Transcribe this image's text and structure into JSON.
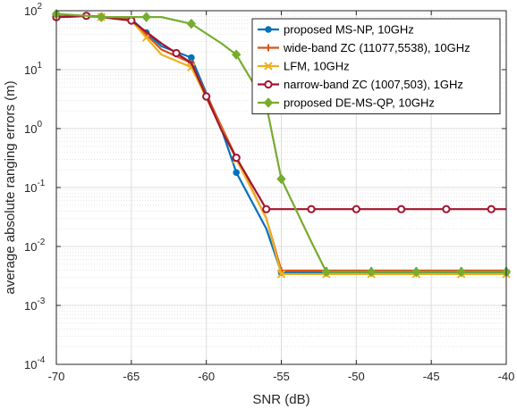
{
  "chart_data": {
    "type": "line",
    "xlabel": "SNR (dB)",
    "ylabel": "average absolute ranging errors (m)",
    "xlim": [
      -70,
      -40
    ],
    "ylim": [
      0.0001,
      100
    ],
    "y_scale": "log",
    "grid": true,
    "minor_grid": true,
    "legend_position": "top-right",
    "x_ticks": [
      -70,
      -65,
      -60,
      -55,
      -50,
      -45,
      -40
    ],
    "x_tick_labels": [
      "-70",
      "-65",
      "-60",
      "-55",
      "-50",
      "-45",
      "-40"
    ],
    "y_ticks": [
      0.0001,
      0.001,
      0.01,
      0.1,
      1,
      10,
      100
    ],
    "y_tick_labels": [
      {
        "base": "10",
        "exp": "-4"
      },
      {
        "base": "10",
        "exp": "-3"
      },
      {
        "base": "10",
        "exp": "-2"
      },
      {
        "base": "10",
        "exp": "-1"
      },
      {
        "base": "10",
        "exp": "0"
      },
      {
        "base": "10",
        "exp": "1"
      },
      {
        "base": "10",
        "exp": "2"
      }
    ],
    "series": [
      {
        "name": "proposed MS-NP, 10GHz",
        "color": "#0072BD",
        "marker": "dot",
        "x": [
          -70,
          -68,
          -67,
          -65,
          -63,
          -61,
          -59,
          -58,
          -56,
          -55,
          -53,
          -52,
          -51,
          -49,
          -48,
          -47,
          -45,
          -44,
          -43,
          -41,
          -40
        ],
        "y": [
          78,
          80,
          78,
          72,
          25,
          16,
          1.0,
          0.18,
          0.02,
          0.0036,
          0.0036,
          0.0036,
          0.0036,
          0.0036,
          0.0036,
          0.0036,
          0.0036,
          0.0036,
          0.0036,
          0.0036,
          0.0036
        ]
      },
      {
        "name": "wide-band ZC (11077,5538), 10GHz",
        "color": "#D95319",
        "marker": "plus",
        "x": [
          -70,
          -68,
          -67,
          -65,
          -63,
          -61,
          -59,
          -58,
          -56,
          -55,
          -53,
          -52,
          -51,
          -49,
          -48,
          -47,
          -45,
          -44,
          -43,
          -41,
          -40
        ],
        "y": [
          82,
          82,
          80,
          70,
          22,
          13,
          1.1,
          0.32,
          0.03,
          0.0039,
          0.0039,
          0.0039,
          0.0039,
          0.0039,
          0.0039,
          0.0039,
          0.0039,
          0.0039,
          0.0039,
          0.0039,
          0.0039
        ]
      },
      {
        "name": "LFM, 10GHz",
        "color": "#EDB120",
        "marker": "cross",
        "x": [
          -70,
          -68,
          -67,
          -65,
          -63,
          -61,
          -59,
          -58,
          -56,
          -55,
          -53,
          -52,
          -51,
          -49,
          -48,
          -47,
          -45,
          -44,
          -43,
          -41,
          -40
        ],
        "y": [
          80,
          80,
          78,
          68,
          18,
          11,
          1.0,
          0.3,
          0.03,
          0.0034,
          0.0034,
          0.0034,
          0.0034,
          0.0034,
          0.0034,
          0.0034,
          0.0034,
          0.0034,
          0.0034,
          0.0034,
          0.0034
        ]
      },
      {
        "name": "narrow-band ZC (1007,503), 1GHz",
        "color": "#A2142F",
        "marker": "circle",
        "x": [
          -70,
          -68,
          -67,
          -65,
          -63,
          -61,
          -59,
          -58,
          -56,
          -55,
          -53,
          -52,
          -51,
          -49,
          -48,
          -47,
          -45,
          -44,
          -43,
          -41,
          -40
        ],
        "y": [
          78,
          82,
          78,
          68,
          28,
          13,
          0.95,
          0.32,
          0.043,
          0.043,
          0.043,
          0.043,
          0.043,
          0.043,
          0.043,
          0.043,
          0.043,
          0.043,
          0.043,
          0.043,
          0.043
        ]
      },
      {
        "name": "proposed DE-MS-QP, 10GHz",
        "color": "#77AC30",
        "marker": "diamond",
        "x": [
          -70,
          -68,
          -67,
          -65,
          -63,
          -61,
          -59,
          -58,
          -56,
          -55,
          -53,
          -52,
          -51,
          -49,
          -48,
          -47,
          -45,
          -44,
          -43,
          -41,
          -40
        ],
        "y": [
          88,
          82,
          78,
          78,
          78,
          60,
          28,
          18,
          2.5,
          0.14,
          0.012,
          0.0037,
          0.0037,
          0.0037,
          0.0037,
          0.0037,
          0.0037,
          0.0037,
          0.0037,
          0.0037,
          0.0037
        ]
      }
    ],
    "marker_points": [
      {
        "series": 0,
        "x": [
          -70,
          -67,
          -64,
          -61,
          -58,
          -55,
          -52,
          -49,
          -46,
          -43,
          -40
        ]
      },
      {
        "series": 1,
        "x": [
          -70,
          -67,
          -64,
          -61,
          -58,
          -55,
          -52,
          -49,
          -46,
          -43,
          -40
        ]
      },
      {
        "series": 2,
        "x": [
          -70,
          -67,
          -64,
          -61,
          -58,
          -55,
          -52,
          -49,
          -46,
          -43,
          -40
        ]
      },
      {
        "series": 3,
        "x": [
          -70,
          -68,
          -65,
          -62,
          -60,
          -58,
          -56,
          -53,
          -50,
          -47,
          -44,
          -41
        ]
      },
      {
        "series": 4,
        "x": [
          -70,
          -67,
          -64,
          -61,
          -58,
          -55,
          -52,
          -49,
          -46,
          -43,
          -40
        ]
      }
    ]
  }
}
